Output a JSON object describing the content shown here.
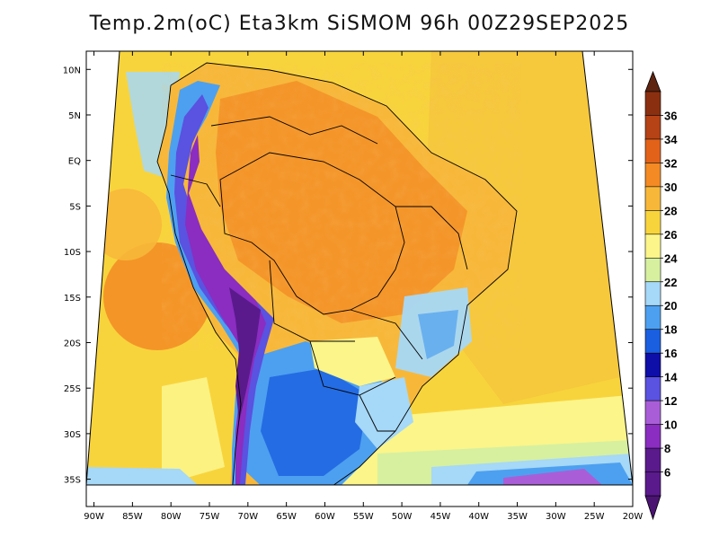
{
  "title": "Temp.2m(oC) Eta3km SiSMOM 96h 00Z29SEP2025",
  "map": {
    "variable": "Temp.2m",
    "units": "oC",
    "lon_range": [
      -91,
      -20
    ],
    "lat_range": [
      -38,
      12
    ],
    "lat_ticks": [
      {
        "value": 10,
        "label": "10N"
      },
      {
        "value": 5,
        "label": "5N"
      },
      {
        "value": 0,
        "label": "EQ"
      },
      {
        "value": -5,
        "label": "5S"
      },
      {
        "value": -10,
        "label": "10S"
      },
      {
        "value": -15,
        "label": "15S"
      },
      {
        "value": -20,
        "label": "20S"
      },
      {
        "value": -25,
        "label": "25S"
      },
      {
        "value": -30,
        "label": "30S"
      },
      {
        "value": -35,
        "label": "35S"
      }
    ],
    "lon_ticks": [
      {
        "value": -90,
        "label": "90W"
      },
      {
        "value": -85,
        "label": "85W"
      },
      {
        "value": -80,
        "label": "80W"
      },
      {
        "value": -75,
        "label": "75W"
      },
      {
        "value": -70,
        "label": "70W"
      },
      {
        "value": -65,
        "label": "65W"
      },
      {
        "value": -60,
        "label": "60W"
      },
      {
        "value": -55,
        "label": "55W"
      },
      {
        "value": -50,
        "label": "50W"
      },
      {
        "value": -45,
        "label": "45W"
      },
      {
        "value": -40,
        "label": "40W"
      },
      {
        "value": -35,
        "label": "35W"
      },
      {
        "value": -30,
        "label": "30W"
      },
      {
        "value": -25,
        "label": "25W"
      },
      {
        "value": -20,
        "label": "20W"
      }
    ]
  },
  "colorbar": {
    "levels": [
      {
        "value": 6,
        "label": "6",
        "color": "#5a1a8c"
      },
      {
        "value": 8,
        "label": "8",
        "color": "#8a2dc0"
      },
      {
        "value": 10,
        "label": "10",
        "color": "#a95ed8"
      },
      {
        "value": 12,
        "label": "12",
        "color": "#5a52e0"
      },
      {
        "value": 14,
        "label": "14",
        "color": "#0e0ea8"
      },
      {
        "value": 16,
        "label": "16",
        "color": "#1a5fe0"
      },
      {
        "value": 18,
        "label": "18",
        "color": "#4da0f0"
      },
      {
        "value": 20,
        "label": "20",
        "color": "#a6d8f7"
      },
      {
        "value": 22,
        "label": "22",
        "color": "#d6f0a0"
      },
      {
        "value": 24,
        "label": "24",
        "color": "#fbf58a"
      },
      {
        "value": 26,
        "label": "26",
        "color": "#f8d43c"
      },
      {
        "value": 28,
        "label": "28",
        "color": "#f7b83a"
      },
      {
        "value": 30,
        "label": "30",
        "color": "#f38a24"
      },
      {
        "value": 32,
        "label": "32",
        "color": "#e2621a"
      },
      {
        "value": 34,
        "label": "34",
        "color": "#b54316"
      },
      {
        "value": 36,
        "label": "36",
        "color": "#8a3010"
      }
    ],
    "under_color": "#4b1473",
    "over_color": "#5e2410"
  }
}
